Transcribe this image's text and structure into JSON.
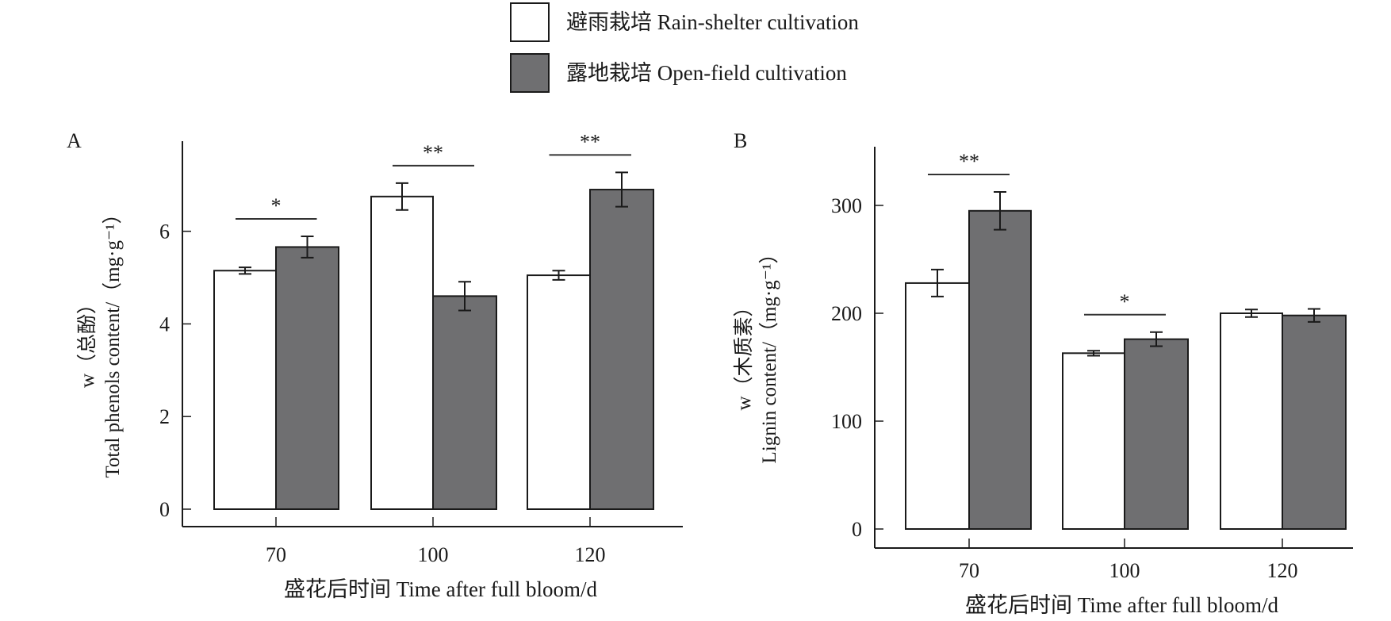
{
  "legend": [
    {
      "label": "避雨栽培 Rain-shelter cultivation",
      "color": "#ffffff"
    },
    {
      "label": "露地栽培 Open-field cultivation",
      "color": "#6f6f71"
    }
  ],
  "chart_data": [
    {
      "type": "bar",
      "panel": "A",
      "categories": [
        "70",
        "100",
        "120"
      ],
      "xlabel": "盛花后时间 Time after full bloom/d",
      "ylabel_line1": "w（总酚）",
      "ylabel_line2": "Total phenols content/（mg·g⁻¹）",
      "yticks": [
        "0",
        "2",
        "4",
        "6"
      ],
      "ylim": [
        -0.4,
        8
      ],
      "series": [
        {
          "name": "避雨栽培 Rain-shelter cultivation",
          "values": [
            5.15,
            6.75,
            5.05
          ],
          "errors": [
            0.07,
            0.29,
            0.1
          ]
        },
        {
          "name": "露地栽培 Open-field cultivation",
          "values": [
            5.66,
            4.6,
            6.9
          ],
          "errors": [
            0.23,
            0.31,
            0.37
          ]
        }
      ],
      "significance": [
        "*",
        "**",
        "**"
      ]
    },
    {
      "type": "bar",
      "panel": "B",
      "categories": [
        "70",
        "100",
        "120"
      ],
      "xlabel": "盛花后时间 Time after full bloom/d",
      "ylabel_line1": "w（木质素）",
      "ylabel_line2": "Lignin content/（mg·g⁻¹）",
      "yticks": [
        "0",
        "100",
        "200",
        "300"
      ],
      "ylim": [
        -17,
        355
      ],
      "series": [
        {
          "name": "避雨栽培 Rain-shelter cultivation",
          "values": [
            228,
            163,
            200
          ],
          "errors": [
            12.5,
            2.3,
            3.5
          ]
        },
        {
          "name": "露地栽培 Open-field cultivation",
          "values": [
            295,
            176,
            198
          ],
          "errors": [
            17.5,
            6.5,
            6
          ]
        }
      ],
      "significance": [
        "**",
        "*",
        ""
      ]
    }
  ]
}
